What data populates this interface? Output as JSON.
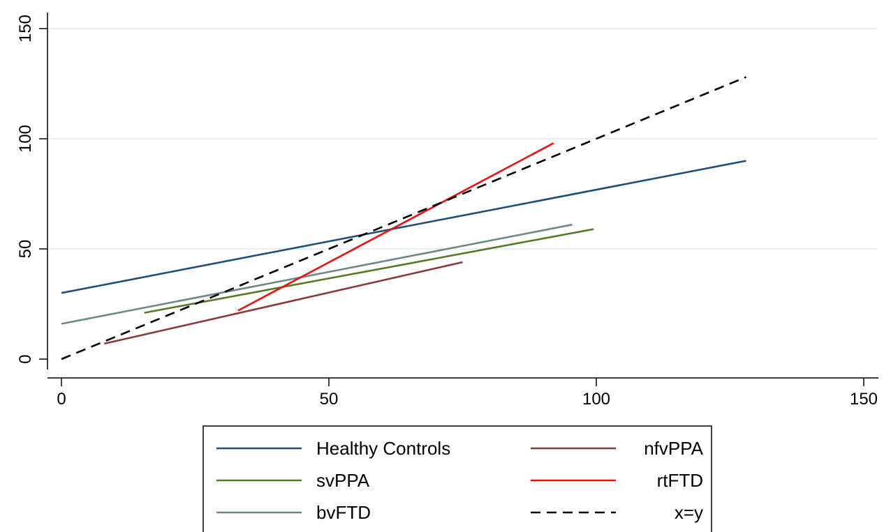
{
  "chart_data": {
    "type": "line",
    "title": "",
    "xlabel": "",
    "ylabel": "",
    "xlim": [
      -3,
      153
    ],
    "ylim": [
      -8,
      157
    ],
    "xticks": [
      0,
      50,
      100,
      150
    ],
    "yticks": [
      0,
      50,
      100,
      150
    ],
    "xtick_labels": [
      "0",
      "50",
      "100",
      "150"
    ],
    "ytick_labels": [
      "0",
      "50",
      "100",
      "150"
    ],
    "grid": "horizontal",
    "legend_position": "bottom",
    "series": [
      {
        "name": "Healthy Controls",
        "color": "#1f4e79",
        "style": "solid",
        "x": [
          0,
          128
        ],
        "y": [
          30,
          90
        ]
      },
      {
        "name": "svPPA",
        "color": "#557a25",
        "style": "solid",
        "x": [
          15.5,
          99.5
        ],
        "y": [
          21,
          59
        ]
      },
      {
        "name": "bvFTD",
        "color": "#6b8c80",
        "style": "solid",
        "x": [
          0,
          95.5
        ],
        "y": [
          16,
          61
        ]
      },
      {
        "name": "nfvPPA",
        "color": "#8b3a3a",
        "style": "solid",
        "x": [
          8,
          75
        ],
        "y": [
          7,
          44
        ]
      },
      {
        "name": "rtFTD",
        "color": "#ee1111",
        "style": "solid",
        "x": [
          33,
          92
        ],
        "y": [
          22,
          98
        ]
      },
      {
        "name": "x=y",
        "color": "#000000",
        "style": "dashed",
        "x": [
          0,
          128
        ],
        "y": [
          0,
          128
        ]
      }
    ]
  }
}
